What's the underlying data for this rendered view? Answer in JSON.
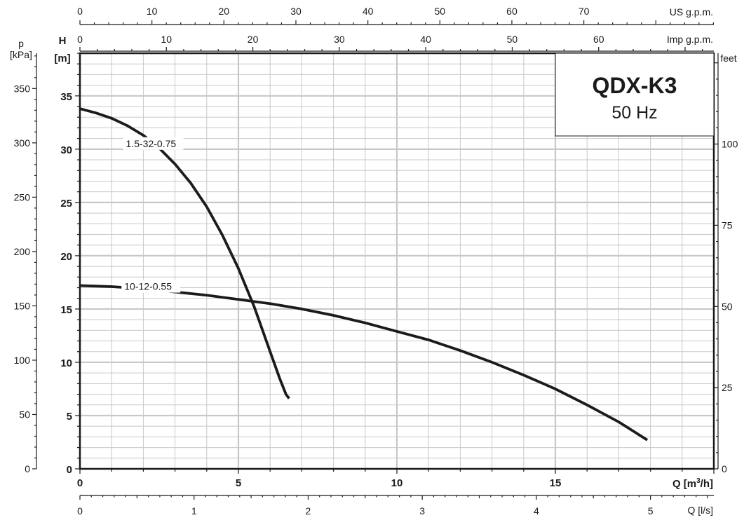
{
  "chart_data": {
    "type": "line",
    "title": "QDX-K3",
    "subtitle": "50 Hz",
    "xlabel": "Q [m³/h]",
    "xlabel_base": "Q [m",
    "xlabel_sup": "3",
    "xlabel_end": "/h]",
    "ylabel": "H",
    "ylabel_unit": "[m]",
    "xlim": [
      0,
      20
    ],
    "ylim": [
      0,
      39
    ],
    "x_ticks": [
      "0",
      "5",
      "10",
      "15"
    ],
    "y_ticks": [
      "0",
      "5",
      "10",
      "15",
      "20",
      "25",
      "30",
      "35"
    ],
    "grid": true,
    "top_axis_1": {
      "label": "US g.p.m.",
      "ticks": [
        "0",
        "10",
        "20",
        "30",
        "40",
        "50",
        "60",
        "70"
      ]
    },
    "top_axis_2": {
      "label": "Imp g.p.m.",
      "ticks": [
        "0",
        "10",
        "20",
        "30",
        "40",
        "50",
        "60"
      ]
    },
    "left_axis": {
      "label": "p",
      "unit": "[kPa]",
      "ticks": [
        "0",
        "50",
        "100",
        "150",
        "200",
        "250",
        "300",
        "350"
      ]
    },
    "right_axis": {
      "label": "feet",
      "ticks": [
        "0",
        "25",
        "50",
        "75",
        "100"
      ]
    },
    "bottom_axis_2": {
      "label": "Q [l/s]",
      "ticks": [
        "0",
        "1",
        "2",
        "3",
        "4",
        "5"
      ]
    },
    "series": [
      {
        "name": "1.5-32-0.75",
        "x": [
          0,
          0.5,
          1.0,
          1.5,
          2.0,
          2.5,
          3.0,
          3.5,
          4.0,
          4.5,
          5.0,
          5.5,
          6.0,
          6.3,
          6.5,
          6.6
        ],
        "y": [
          33.8,
          33.4,
          32.9,
          32.2,
          31.3,
          30.1,
          28.6,
          26.8,
          24.6,
          21.9,
          18.8,
          15.2,
          11.0,
          8.5,
          7.0,
          6.6
        ]
      },
      {
        "name": "10-12-0.55",
        "x": [
          0,
          1,
          2,
          3,
          4,
          5,
          6,
          7,
          8,
          9,
          10,
          11,
          12,
          13,
          14,
          15,
          16,
          17,
          17.9
        ],
        "y": [
          17.2,
          17.1,
          16.9,
          16.6,
          16.3,
          15.9,
          15.5,
          15.0,
          14.4,
          13.7,
          12.9,
          12.1,
          11.1,
          10.0,
          8.8,
          7.5,
          6.0,
          4.4,
          2.7
        ]
      }
    ]
  }
}
